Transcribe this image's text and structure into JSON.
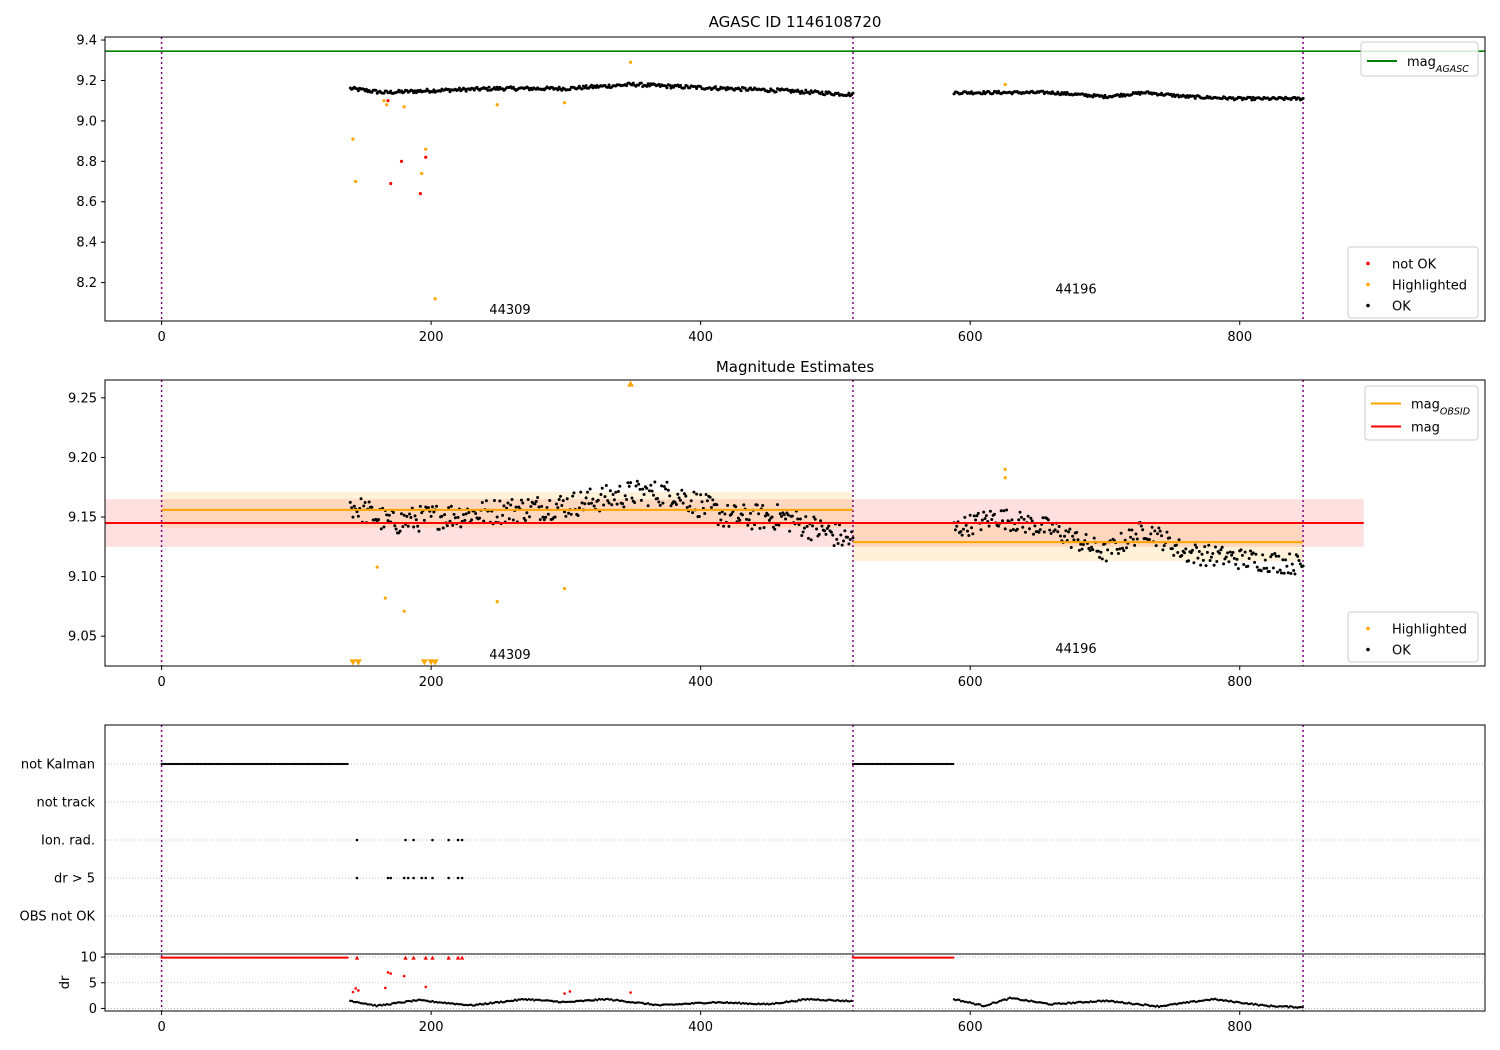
{
  "chart_data": [
    {
      "type": "scatter",
      "title": "AGASC ID 1146108720",
      "xlabel": "",
      "ylabel": "",
      "xlim": [
        -42,
        982
      ],
      "ylim": [
        8.01,
        9.415
      ],
      "xticks": [
        0,
        200,
        400,
        600,
        800
      ],
      "xtick_labels": [
        "0",
        "200",
        "400",
        "600",
        "800"
      ],
      "yticks": [
        8.2,
        8.4,
        8.6,
        8.8,
        9.0,
        9.2,
        9.4
      ],
      "ytick_labels": [
        "8.2",
        "8.4",
        "8.6",
        "8.8",
        "9.0",
        "9.2",
        "9.4"
      ],
      "obs_boundaries": [
        0,
        513,
        847
      ],
      "obs_labels": [
        {
          "text": "44309",
          "x": 258,
          "y": 8.07
        },
        {
          "text": "44196",
          "x": 678,
          "y": 8.17
        }
      ],
      "hlines": [
        {
          "name": "mag_AGASC",
          "y": 9.345,
          "color": "#008000"
        }
      ],
      "legend_top": {
        "placement": "upper right",
        "entries": [
          {
            "label": "mag",
            "sub": "AGASC",
            "color": "#008000",
            "kind": "line"
          }
        ]
      },
      "legend_bottom": {
        "placement": "lower right",
        "entries": [
          {
            "label": "not OK",
            "color": "#ff0000",
            "kind": "dot"
          },
          {
            "label": "Highlighted",
            "color": "#ffa500",
            "kind": "dot"
          },
          {
            "label": "OK",
            "color": "#000000",
            "kind": "dot"
          }
        ]
      },
      "series": [
        {
          "name": "OK",
          "color": "#000000",
          "segments": [
            {
              "x0": 140,
              "x1": 513,
              "knots": [
                [
                  140,
                  9.16
                ],
                [
                  165,
                  9.14
                ],
                [
                  200,
                  9.15
                ],
                [
                  250,
                  9.16
                ],
                [
                  300,
                  9.16
                ],
                [
                  350,
                  9.18
                ],
                [
                  380,
                  9.17
                ],
                [
                  420,
                  9.16
                ],
                [
                  460,
                  9.15
                ],
                [
                  513,
                  9.13
                ]
              ],
              "jitter": 0.009
            },
            {
              "x0": 588,
              "x1": 847,
              "knots": [
                [
                  588,
                  9.14
                ],
                [
                  620,
                  9.14
                ],
                [
                  660,
                  9.14
                ],
                [
                  700,
                  9.12
                ],
                [
                  730,
                  9.14
                ],
                [
                  760,
                  9.12
                ],
                [
                  800,
                  9.11
                ],
                [
                  847,
                  9.11
                ]
              ],
              "jitter": 0.007
            }
          ]
        },
        {
          "name": "Highlighted",
          "color": "#ffa500",
          "points": [
            [
              142,
              8.91
            ],
            [
              144,
              8.7
            ],
            [
              165,
              9.1
            ],
            [
              167,
              9.08
            ],
            [
              180,
              9.07
            ],
            [
              193,
              8.74
            ],
            [
              196,
              8.86
            ],
            [
              203,
              8.12
            ],
            [
              249,
              9.08
            ],
            [
              299,
              9.09
            ],
            [
              348,
              9.29
            ],
            [
              626,
              9.18
            ]
          ]
        },
        {
          "name": "not OK",
          "color": "#ff0000",
          "points": [
            [
              168,
              9.1
            ],
            [
              170,
              8.69
            ],
            [
              178,
              8.8
            ],
            [
              192,
              8.64
            ],
            [
              196,
              8.82
            ]
          ]
        }
      ]
    },
    {
      "type": "scatter",
      "title": "Magnitude Estimates",
      "xlabel": "",
      "ylabel": "",
      "xlim": [
        -42,
        982
      ],
      "ylim": [
        9.025,
        9.265
      ],
      "xticks": [
        0,
        200,
        400,
        600,
        800
      ],
      "xtick_labels": [
        "0",
        "200",
        "400",
        "600",
        "800"
      ],
      "yticks": [
        9.05,
        9.1,
        9.15,
        9.2,
        9.25
      ],
      "ytick_labels": [
        "9.05",
        "9.10",
        "9.15",
        "9.20",
        "9.25"
      ],
      "obs_boundaries": [
        0,
        513,
        847
      ],
      "obs_labels": [
        {
          "text": "44309",
          "x": 258,
          "y": 9.035
        },
        {
          "text": "44196",
          "x": 678,
          "y": 9.04
        }
      ],
      "bands": [
        {
          "name": "mag",
          "x0": -42,
          "x1": 892,
          "y0": 9.125,
          "y1": 9.165,
          "color": "#ff0000",
          "opacity": 0.12
        },
        {
          "name": "mag_OBSID 44309",
          "x0": 0,
          "x1": 513,
          "y0": 9.141,
          "y1": 9.171,
          "color": "#ffa500",
          "opacity": 0.15
        },
        {
          "name": "mag_OBSID 44196",
          "x0": 513,
          "x1": 847,
          "y0": 9.113,
          "y1": 9.145,
          "color": "#ffa500",
          "opacity": 0.15
        }
      ],
      "hsegments": [
        {
          "name": "mag_OBSID 44309",
          "x0": 0,
          "x1": 513,
          "y": 9.156,
          "color": "#ffa500"
        },
        {
          "name": "mag_OBSID 44196",
          "x0": 513,
          "x1": 847,
          "y": 9.129,
          "color": "#ffa500"
        },
        {
          "name": "mag",
          "x0": -42,
          "x1": 892,
          "y": 9.145,
          "color": "#ff0000"
        }
      ],
      "legend_top": {
        "placement": "upper right",
        "entries": [
          {
            "label": "mag",
            "sub": "OBSID",
            "color": "#ffa500",
            "kind": "line"
          },
          {
            "label": "mag",
            "sub": "",
            "color": "#ff0000",
            "kind": "line"
          }
        ]
      },
      "legend_bottom": {
        "placement": "lower right",
        "entries": [
          {
            "label": "Highlighted",
            "color": "#ffa500",
            "kind": "dot"
          },
          {
            "label": "OK",
            "color": "#000000",
            "kind": "dot"
          }
        ]
      },
      "series": [
        {
          "name": "OK",
          "color": "#000000",
          "segments": [
            {
              "x0": 140,
              "x1": 513,
              "knots": [
                [
                  140,
                  9.16
                ],
                [
                  170,
                  9.145
                ],
                [
                  200,
                  9.15
                ],
                [
                  250,
                  9.155
                ],
                [
                  300,
                  9.16
                ],
                [
                  350,
                  9.17
                ],
                [
                  380,
                  9.17
                ],
                [
                  420,
                  9.15
                ],
                [
                  460,
                  9.15
                ],
                [
                  513,
                  9.13
                ]
              ],
              "jitter": 0.011
            },
            {
              "x0": 588,
              "x1": 847,
              "knots": [
                [
                  588,
                  9.14
                ],
                [
                  620,
                  9.15
                ],
                [
                  660,
                  9.14
                ],
                [
                  700,
                  9.12
                ],
                [
                  730,
                  9.14
                ],
                [
                  760,
                  9.12
                ],
                [
                  800,
                  9.115
                ],
                [
                  847,
                  9.11
                ]
              ],
              "jitter": 0.009
            }
          ]
        },
        {
          "name": "Highlighted",
          "color": "#ffa500",
          "points": [
            [
              160,
              9.108
            ],
            [
              166,
              9.082
            ],
            [
              180,
              9.071
            ],
            [
              249,
              9.079
            ],
            [
              299,
              9.09
            ],
            [
              626,
              9.19
            ],
            [
              626,
              9.183
            ]
          ]
        },
        {
          "name": "Highlighted (off scale)",
          "color": "#ffa500",
          "marker": "triangle",
          "points": [
            [
              142,
              9.028
            ],
            [
              146,
              9.028
            ],
            [
              195,
              9.028
            ],
            [
              200,
              9.028
            ],
            [
              203,
              9.028
            ],
            [
              348,
              9.262
            ]
          ]
        }
      ]
    },
    {
      "type": "scatter",
      "title": "",
      "xlabel": "",
      "xlim": [
        -42,
        982
      ],
      "xticks": [
        0,
        200,
        400,
        600,
        800
      ],
      "xtick_labels": [
        "0",
        "200",
        "400",
        "600",
        "800"
      ],
      "obs_boundaries": [
        0,
        513,
        847
      ],
      "flag_rows": [
        "not Kalman",
        "not track",
        "Ion. rad.",
        "dr > 5",
        "OBS not OK"
      ],
      "flags": {
        "not Kalman": [
          [
            0,
            139
          ],
          [
            513,
            588
          ]
        ],
        "not track": [],
        "Ion. rad.": [
          145,
          181,
          187,
          201,
          213,
          220,
          223
        ],
        "dr > 5": [
          145,
          168,
          170,
          180,
          183,
          187,
          193,
          196,
          201,
          213,
          220,
          223
        ],
        "OBS not OK": []
      },
      "dr": {
        "ylabel": "dr",
        "ylim": [
          -0.5,
          10.6
        ],
        "yticks": [
          0,
          5,
          10
        ],
        "ytick_labels": [
          "0",
          "5",
          "10"
        ],
        "capped_value": 9.9,
        "capped_ranges": [
          [
            0,
            139
          ],
          [
            513,
            588
          ]
        ],
        "capped_points": [
          145,
          181,
          187,
          196,
          201,
          213,
          220,
          223
        ],
        "red_points": [
          [
            142,
            3.2
          ],
          [
            144,
            3.9
          ],
          [
            146,
            3.5
          ],
          [
            166,
            4.0
          ],
          [
            168,
            7.0
          ],
          [
            170,
            6.8
          ],
          [
            180,
            6.3
          ],
          [
            196,
            4.2
          ],
          [
            299,
            2.9
          ],
          [
            303,
            3.3
          ],
          [
            348,
            3.1
          ]
        ],
        "ok_segments": [
          {
            "x0": 140,
            "x1": 513,
            "knots": [
              [
                140,
                1.5
              ],
              [
                160,
                0.5
              ],
              [
                190,
                1.6
              ],
              [
                230,
                0.6
              ],
              [
                270,
                1.8
              ],
              [
                300,
                1.2
              ],
              [
                330,
                1.8
              ],
              [
                370,
                0.6
              ],
              [
                410,
                1.2
              ],
              [
                450,
                0.8
              ],
              [
                480,
                1.8
              ],
              [
                513,
                1.4
              ]
            ]
          },
          {
            "x0": 588,
            "x1": 847,
            "knots": [
              [
                588,
                1.8
              ],
              [
                610,
                0.5
              ],
              [
                630,
                2.0
              ],
              [
                660,
                0.8
              ],
              [
                700,
                1.5
              ],
              [
                740,
                0.4
              ],
              [
                780,
                1.8
              ],
              [
                820,
                0.5
              ],
              [
                847,
                0.2
              ]
            ]
          }
        ]
      }
    }
  ]
}
